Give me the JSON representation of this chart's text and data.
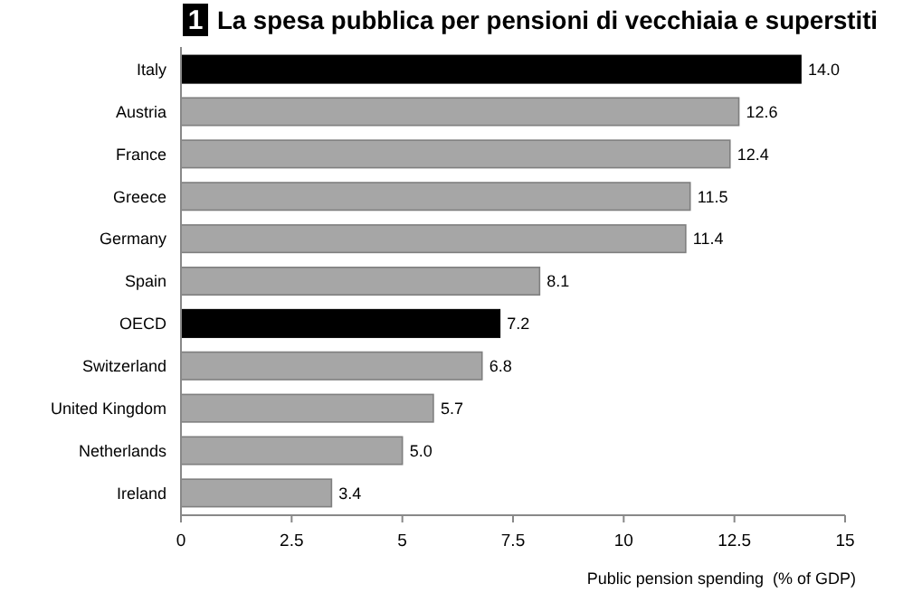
{
  "chart_data": {
    "type": "bar",
    "orientation": "horizontal",
    "title": "La spesa pubblica per pensioni di vecchiaia e superstiti",
    "annotations": [
      "1"
    ],
    "xlabel": "Public pension spending  (% of GDP)",
    "categories": [
      "Italy",
      "Austria",
      "France",
      "Greece",
      "Germany",
      "Spain",
      "OECD",
      "Switzerland",
      "United Kingdom",
      "Netherlands",
      "Ireland"
    ],
    "values": [
      14.0,
      12.6,
      12.4,
      11.5,
      11.4,
      8.1,
      7.2,
      6.8,
      5.7,
      5.0,
      3.4
    ],
    "value_labels": [
      "14.0",
      "12.6",
      "12.4",
      "11.5",
      "11.4",
      "8.1",
      "7.2",
      "6.8",
      "5.7",
      "5.0",
      "3.4"
    ],
    "colors": [
      "#000000",
      "#a6a6a6",
      "#a6a6a6",
      "#a6a6a6",
      "#a6a6a6",
      "#a6a6a6",
      "#000000",
      "#a6a6a6",
      "#a6a6a6",
      "#a6a6a6",
      "#a6a6a6"
    ],
    "xlim": [
      0,
      15
    ],
    "xticks": [
      0,
      2.5,
      5,
      7.5,
      10,
      12.5,
      15
    ],
    "grid": false
  }
}
